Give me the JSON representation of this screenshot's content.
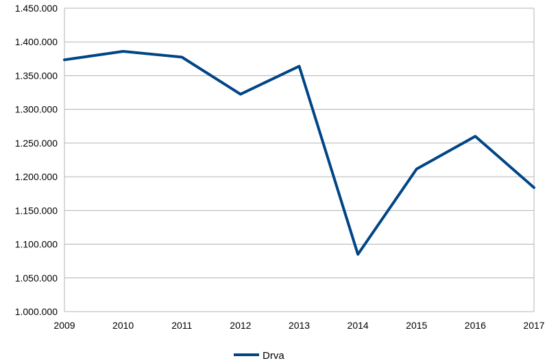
{
  "chart_data": {
    "type": "line",
    "categories": [
      "2009",
      "2010",
      "2011",
      "2012",
      "2013",
      "2014",
      "2015",
      "2016",
      "2017"
    ],
    "series": [
      {
        "name": "Drva",
        "values": [
          1373500,
          1386000,
          1377500,
          1322500,
          1364000,
          1085000,
          1211500,
          1260000,
          1184000
        ]
      }
    ],
    "y_tick_labels": [
      "1.000.000",
      "1.050.000",
      "1.100.000",
      "1.150.000",
      "1.200.000",
      "1.250.000",
      "1.300.000",
      "1.350.000",
      "1.400.000",
      "1.450.000"
    ],
    "ylim": [
      1000000,
      1450000
    ],
    "y_step": 50000,
    "grid": "horizontal",
    "legend_position": "bottom-center",
    "line_color": "#004586",
    "grid_color": "#b3b3b3"
  }
}
